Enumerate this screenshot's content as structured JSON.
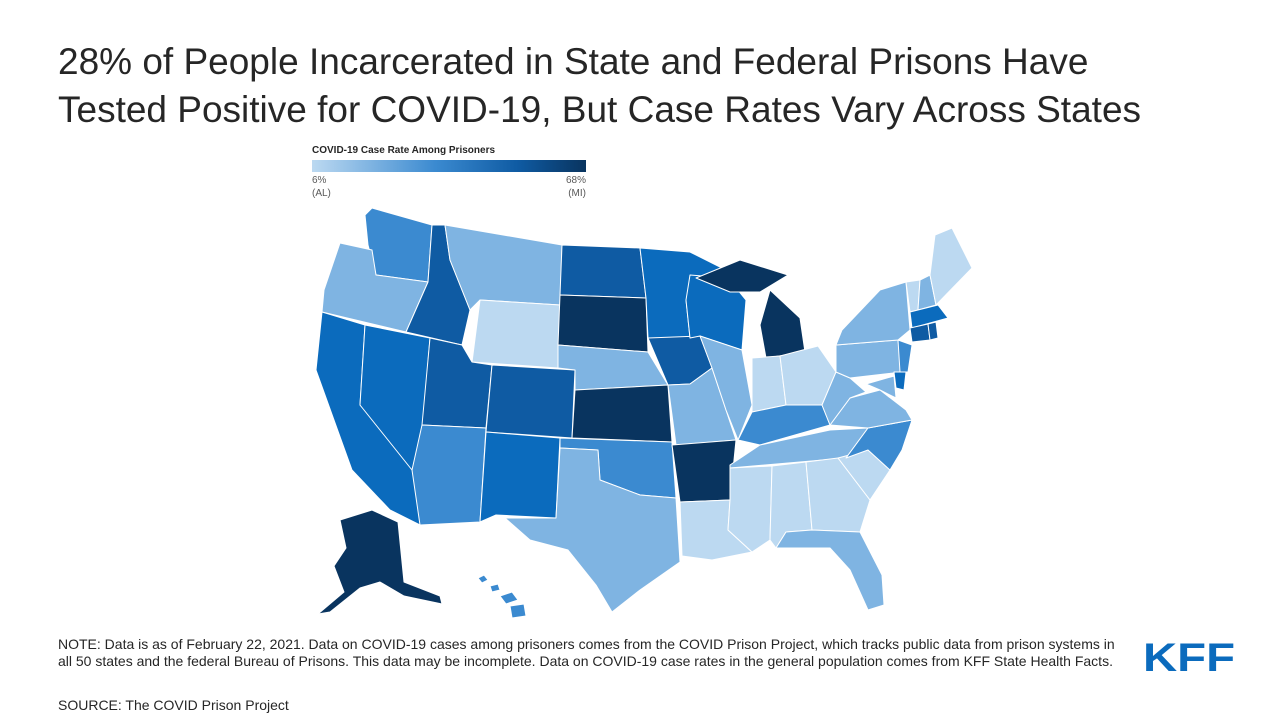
{
  "title": {
    "line1": "28% of People Incarcerated in State and Federal Prisons Have",
    "line2": "Tested Positive for COVID-19, But Case Rates Vary Across States"
  },
  "legend": {
    "title": "COVID-19 Case Rate Among Prisoners",
    "min_value": "6%",
    "min_state": "(AL)",
    "max_value": "68%",
    "max_state": "(MI)"
  },
  "colors": {
    "lightest": "#bcd9f1",
    "light": "#7fb4e2",
    "medium": "#3b8ad0",
    "dark": "#0b6bbd",
    "darker": "#0f5ba3",
    "darkest": "#09345f"
  },
  "note": "NOTE: Data is as of February 22, 2021. Data on COVID-19 cases among prisoners comes from the COVID Prison Project, which tracks public data from prison systems in all 50 states and the federal Bureau of Prisons. This data may be incomplete. Data on COVID-19 case rates in the general population comes from KFF State Health Facts.",
  "source": "SOURCE: The COVID Prison Project",
  "logo": "KFF"
}
